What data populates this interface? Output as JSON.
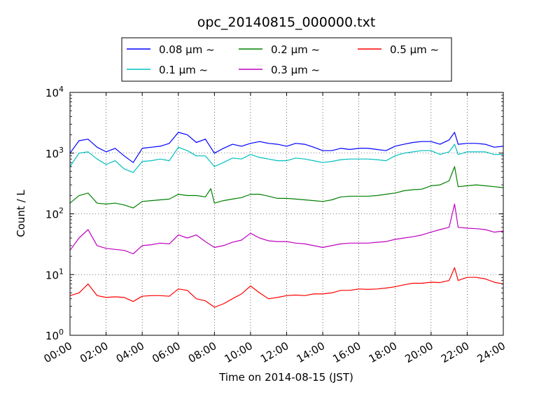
{
  "chart_data": {
    "type": "line",
    "title": "opc_20140815_000000.txt",
    "xlabel": "Time on 2014-08-15 (JST)",
    "ylabel": "Count / L",
    "xlim": [
      "00:00",
      "24:00"
    ],
    "ylim": [
      1,
      10000
    ],
    "y_scale": "log",
    "grid": true,
    "legend_position": "top-center",
    "x_ticks": [
      "00:00",
      "02:00",
      "04:00",
      "06:00",
      "08:00",
      "10:00",
      "12:00",
      "14:00",
      "16:00",
      "18:00",
      "20:00",
      "22:00",
      "24:00"
    ],
    "y_ticks": [
      {
        "base": "10",
        "exp": "0",
        "value": 1
      },
      {
        "base": "10",
        "exp": "1",
        "value": 10
      },
      {
        "base": "10",
        "exp": "2",
        "value": 100
      },
      {
        "base": "10",
        "exp": "3",
        "value": 1000
      },
      {
        "base": "10",
        "exp": "4",
        "value": 10000
      }
    ],
    "series": [
      {
        "name": "0.08 μm ~",
        "color": "#0000ff",
        "points": [
          [
            0,
            1000
          ],
          [
            0.5,
            1600
          ],
          [
            1,
            1700
          ],
          [
            1.5,
            1250
          ],
          [
            2,
            1050
          ],
          [
            2.5,
            1200
          ],
          [
            3,
            900
          ],
          [
            3.5,
            700
          ],
          [
            4,
            1200
          ],
          [
            4.5,
            1250
          ],
          [
            5,
            1300
          ],
          [
            5.5,
            1450
          ],
          [
            6,
            2200
          ],
          [
            6.5,
            2000
          ],
          [
            7,
            1500
          ],
          [
            7.5,
            1700
          ],
          [
            8,
            1000
          ],
          [
            8.5,
            1200
          ],
          [
            9,
            1400
          ],
          [
            9.5,
            1300
          ],
          [
            10,
            1450
          ],
          [
            10.5,
            1550
          ],
          [
            11,
            1450
          ],
          [
            11.5,
            1400
          ],
          [
            12,
            1300
          ],
          [
            12.5,
            1450
          ],
          [
            13,
            1400
          ],
          [
            13.5,
            1250
          ],
          [
            14,
            1100
          ],
          [
            14.5,
            1100
          ],
          [
            15,
            1200
          ],
          [
            15.5,
            1150
          ],
          [
            16,
            1200
          ],
          [
            16.5,
            1200
          ],
          [
            17,
            1150
          ],
          [
            17.5,
            1100
          ],
          [
            18,
            1300
          ],
          [
            18.5,
            1400
          ],
          [
            19,
            1500
          ],
          [
            19.5,
            1550
          ],
          [
            20,
            1550
          ],
          [
            20.5,
            1400
          ],
          [
            21,
            1650
          ],
          [
            21.3,
            2200
          ],
          [
            21.5,
            1400
          ],
          [
            22,
            1450
          ],
          [
            22.5,
            1450
          ],
          [
            23,
            1400
          ],
          [
            23.5,
            1250
          ],
          [
            24,
            1300
          ]
        ]
      },
      {
        "name": "0.1 μm ~",
        "color": "#00bfbf",
        "points": [
          [
            0,
            600
          ],
          [
            0.5,
            1000
          ],
          [
            1,
            1050
          ],
          [
            1.5,
            800
          ],
          [
            2,
            650
          ],
          [
            2.5,
            750
          ],
          [
            3,
            550
          ],
          [
            3.5,
            480
          ],
          [
            4,
            730
          ],
          [
            4.5,
            750
          ],
          [
            5,
            800
          ],
          [
            5.5,
            750
          ],
          [
            6,
            1250
          ],
          [
            6.5,
            1100
          ],
          [
            7,
            900
          ],
          [
            7.5,
            900
          ],
          [
            8,
            600
          ],
          [
            8.5,
            700
          ],
          [
            9,
            830
          ],
          [
            9.5,
            800
          ],
          [
            10,
            950
          ],
          [
            10.5,
            850
          ],
          [
            11,
            800
          ],
          [
            11.5,
            750
          ],
          [
            12,
            750
          ],
          [
            12.5,
            830
          ],
          [
            13,
            800
          ],
          [
            13.5,
            750
          ],
          [
            14,
            700
          ],
          [
            14.5,
            730
          ],
          [
            15,
            780
          ],
          [
            15.5,
            800
          ],
          [
            16,
            800
          ],
          [
            16.5,
            800
          ],
          [
            17,
            780
          ],
          [
            17.5,
            750
          ],
          [
            18,
            900
          ],
          [
            18.5,
            1000
          ],
          [
            19,
            1050
          ],
          [
            19.5,
            1100
          ],
          [
            20,
            1100
          ],
          [
            20.5,
            950
          ],
          [
            21,
            1050
          ],
          [
            21.3,
            1400
          ],
          [
            21.5,
            950
          ],
          [
            22,
            1050
          ],
          [
            22.5,
            1050
          ],
          [
            23,
            1050
          ],
          [
            23.5,
            950
          ],
          [
            24,
            950
          ]
        ]
      },
      {
        "name": "0.2 μm ~",
        "color": "#008000",
        "points": [
          [
            0,
            150
          ],
          [
            0.5,
            200
          ],
          [
            1,
            220
          ],
          [
            1.5,
            150
          ],
          [
            2,
            145
          ],
          [
            2.5,
            150
          ],
          [
            3,
            140
          ],
          [
            3.5,
            125
          ],
          [
            4,
            160
          ],
          [
            4.5,
            165
          ],
          [
            5,
            170
          ],
          [
            5.5,
            175
          ],
          [
            6,
            210
          ],
          [
            6.5,
            200
          ],
          [
            7,
            200
          ],
          [
            7.5,
            190
          ],
          [
            7.8,
            260
          ],
          [
            8,
            150
          ],
          [
            8.5,
            165
          ],
          [
            9,
            175
          ],
          [
            9.5,
            185
          ],
          [
            10,
            210
          ],
          [
            10.5,
            210
          ],
          [
            11,
            195
          ],
          [
            11.5,
            180
          ],
          [
            12,
            180
          ],
          [
            12.5,
            175
          ],
          [
            13,
            170
          ],
          [
            13.5,
            165
          ],
          [
            14,
            160
          ],
          [
            14.5,
            170
          ],
          [
            15,
            190
          ],
          [
            15.5,
            195
          ],
          [
            16,
            195
          ],
          [
            16.5,
            195
          ],
          [
            17,
            200
          ],
          [
            17.5,
            210
          ],
          [
            18,
            220
          ],
          [
            18.5,
            240
          ],
          [
            19,
            250
          ],
          [
            19.5,
            255
          ],
          [
            20,
            290
          ],
          [
            20.5,
            300
          ],
          [
            21,
            350
          ],
          [
            21.3,
            600
          ],
          [
            21.5,
            280
          ],
          [
            22,
            290
          ],
          [
            22.5,
            300
          ],
          [
            23,
            290
          ],
          [
            23.5,
            280
          ],
          [
            24,
            270
          ]
        ]
      },
      {
        "name": "0.3 μm ~",
        "color": "#bf00bf",
        "points": [
          [
            0,
            25
          ],
          [
            0.5,
            40
          ],
          [
            1,
            55
          ],
          [
            1.5,
            30
          ],
          [
            2,
            27
          ],
          [
            2.5,
            26
          ],
          [
            3,
            25
          ],
          [
            3.5,
            22
          ],
          [
            4,
            30
          ],
          [
            4.5,
            31
          ],
          [
            5,
            33
          ],
          [
            5.5,
            32
          ],
          [
            6,
            45
          ],
          [
            6.5,
            40
          ],
          [
            7,
            45
          ],
          [
            7.5,
            35
          ],
          [
            8,
            28
          ],
          [
            8.5,
            30
          ],
          [
            9,
            34
          ],
          [
            9.5,
            37
          ],
          [
            10,
            48
          ],
          [
            10.5,
            40
          ],
          [
            11,
            36
          ],
          [
            11.5,
            35
          ],
          [
            12,
            35
          ],
          [
            12.5,
            33
          ],
          [
            13,
            32
          ],
          [
            13.5,
            30
          ],
          [
            14,
            28
          ],
          [
            14.5,
            30
          ],
          [
            15,
            32
          ],
          [
            15.5,
            33
          ],
          [
            16,
            33
          ],
          [
            16.5,
            33
          ],
          [
            17,
            34
          ],
          [
            17.5,
            35
          ],
          [
            18,
            38
          ],
          [
            18.5,
            40
          ],
          [
            19,
            42
          ],
          [
            19.5,
            45
          ],
          [
            20,
            50
          ],
          [
            20.5,
            55
          ],
          [
            21,
            60
          ],
          [
            21.3,
            145
          ],
          [
            21.5,
            60
          ],
          [
            22,
            58
          ],
          [
            22.5,
            57
          ],
          [
            23,
            55
          ],
          [
            23.5,
            50
          ],
          [
            24,
            52
          ]
        ]
      },
      {
        "name": "0.5 μm ~",
        "color": "#ff0000",
        "points": [
          [
            0,
            4.5
          ],
          [
            0.5,
            5
          ],
          [
            1,
            7
          ],
          [
            1.5,
            4.5
          ],
          [
            2,
            4.2
          ],
          [
            2.5,
            4.3
          ],
          [
            3,
            4.2
          ],
          [
            3.5,
            3.6
          ],
          [
            4,
            4.4
          ],
          [
            4.5,
            4.5
          ],
          [
            5,
            4.5
          ],
          [
            5.5,
            4.4
          ],
          [
            6,
            5.8
          ],
          [
            6.5,
            5.5
          ],
          [
            7,
            4
          ],
          [
            7.5,
            3.7
          ],
          [
            8,
            2.9
          ],
          [
            8.5,
            3.3
          ],
          [
            9,
            4
          ],
          [
            9.5,
            4.8
          ],
          [
            10,
            6.5
          ],
          [
            10.5,
            5
          ],
          [
            11,
            4
          ],
          [
            11.5,
            4.2
          ],
          [
            12,
            4.5
          ],
          [
            12.5,
            4.6
          ],
          [
            13,
            4.5
          ],
          [
            13.5,
            4.8
          ],
          [
            14,
            4.8
          ],
          [
            14.5,
            5
          ],
          [
            15,
            5.5
          ],
          [
            15.5,
            5.5
          ],
          [
            16,
            5.8
          ],
          [
            16.5,
            5.7
          ],
          [
            17,
            5.8
          ],
          [
            17.5,
            6
          ],
          [
            18,
            6.3
          ],
          [
            18.5,
            6.8
          ],
          [
            19,
            7.2
          ],
          [
            19.5,
            7.2
          ],
          [
            20,
            7.5
          ],
          [
            20.5,
            7.4
          ],
          [
            21,
            8
          ],
          [
            21.3,
            13
          ],
          [
            21.5,
            8
          ],
          [
            22,
            9
          ],
          [
            22.5,
            9
          ],
          [
            23,
            8.5
          ],
          [
            23.5,
            7.5
          ],
          [
            24,
            7
          ]
        ]
      }
    ]
  }
}
